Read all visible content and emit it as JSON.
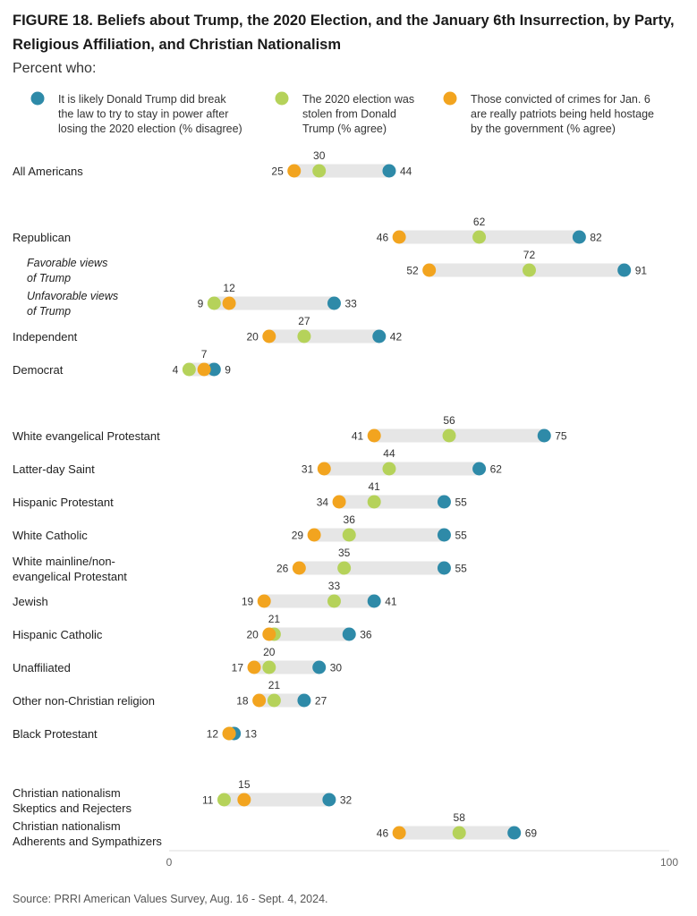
{
  "title_line1": "FIGURE 18.  Beliefs about Trump, the 2020 Election, and the January 6th Insurrection, by Party,",
  "title_line2": "Religious Affiliation, and Christian Nationalism",
  "subtitle": "Percent who:",
  "source": "Source: PRRI American Values Survey, Aug. 16 - Sept. 4, 2024.",
  "colors": {
    "blue": "#2e8aa8",
    "green": "#b5d25a",
    "orange": "#f2a41f",
    "bar": "#e6e6e6"
  },
  "chart_data": {
    "type": "dot",
    "xlim": [
      0,
      100
    ],
    "x_ticks": [
      "0",
      "100"
    ],
    "series": [
      {
        "key": "blue",
        "name_lines": [
          "It is likely Donald Trump did break",
          "the law to try to stay in power after",
          "losing the 2020 election (% disagree)"
        ]
      },
      {
        "key": "green",
        "name_lines": [
          "The 2020 election was",
          "stolen from Donald",
          "Trump (% agree)"
        ]
      },
      {
        "key": "orange",
        "name_lines": [
          "Those convicted of crimes for Jan. 6",
          "are really patriots being held hostage",
          "by the government (% agree)"
        ]
      }
    ],
    "rows": [
      {
        "label": [
          "All Americans"
        ],
        "italic": false,
        "blue": 44,
        "green": 30,
        "orange": 25
      },
      {
        "label": [
          "Republican"
        ],
        "italic": false,
        "blue": 82,
        "green": 62,
        "orange": 46
      },
      {
        "label": [
          "Favorable views",
          "of Trump"
        ],
        "italic": true,
        "blue": 91,
        "green": 72,
        "orange": 52
      },
      {
        "label": [
          "Unfavorable views",
          "of Trump"
        ],
        "italic": true,
        "blue": 33,
        "green": 9,
        "orange": 12
      },
      {
        "label": [
          "Independent"
        ],
        "italic": false,
        "blue": 42,
        "green": 27,
        "orange": 20
      },
      {
        "label": [
          "Democrat"
        ],
        "italic": false,
        "blue": 9,
        "green": 4,
        "orange": 7
      },
      {
        "label": [
          "White evangelical Protestant"
        ],
        "italic": false,
        "blue": 75,
        "green": 56,
        "orange": 41
      },
      {
        "label": [
          "Latter-day Saint"
        ],
        "italic": false,
        "blue": 62,
        "green": 44,
        "orange": 31
      },
      {
        "label": [
          "Hispanic Protestant"
        ],
        "italic": false,
        "blue": 55,
        "green": 41,
        "orange": 34
      },
      {
        "label": [
          "White Catholic"
        ],
        "italic": false,
        "blue": 55,
        "green": 36,
        "orange": 29
      },
      {
        "label": [
          "White mainline/non-",
          "evangelical Protestant"
        ],
        "italic": false,
        "blue": 55,
        "green": 35,
        "orange": 26
      },
      {
        "label": [
          "Jewish"
        ],
        "italic": false,
        "blue": 41,
        "green": 33,
        "orange": 19
      },
      {
        "label": [
          "Hispanic Catholic"
        ],
        "italic": false,
        "blue": 36,
        "green": 21,
        "orange": 20
      },
      {
        "label": [
          "Unaffiliated"
        ],
        "italic": false,
        "blue": 30,
        "green": 20,
        "orange": 17
      },
      {
        "label": [
          "Other non-Christian religion"
        ],
        "italic": false,
        "blue": 27,
        "green": 21,
        "orange": 18
      },
      {
        "label": [
          "Black Protestant"
        ],
        "italic": false,
        "blue": 13,
        "green": 12,
        "orange": 12
      },
      {
        "label": [
          "Christian nationalism",
          "Skeptics and Rejecters"
        ],
        "italic": false,
        "blue": 32,
        "green": 11,
        "orange": 15
      },
      {
        "label": [
          "Christian nationalism",
          "Adherents and Sympathizers"
        ],
        "italic": false,
        "blue": 69,
        "green": 58,
        "orange": 46
      }
    ]
  }
}
